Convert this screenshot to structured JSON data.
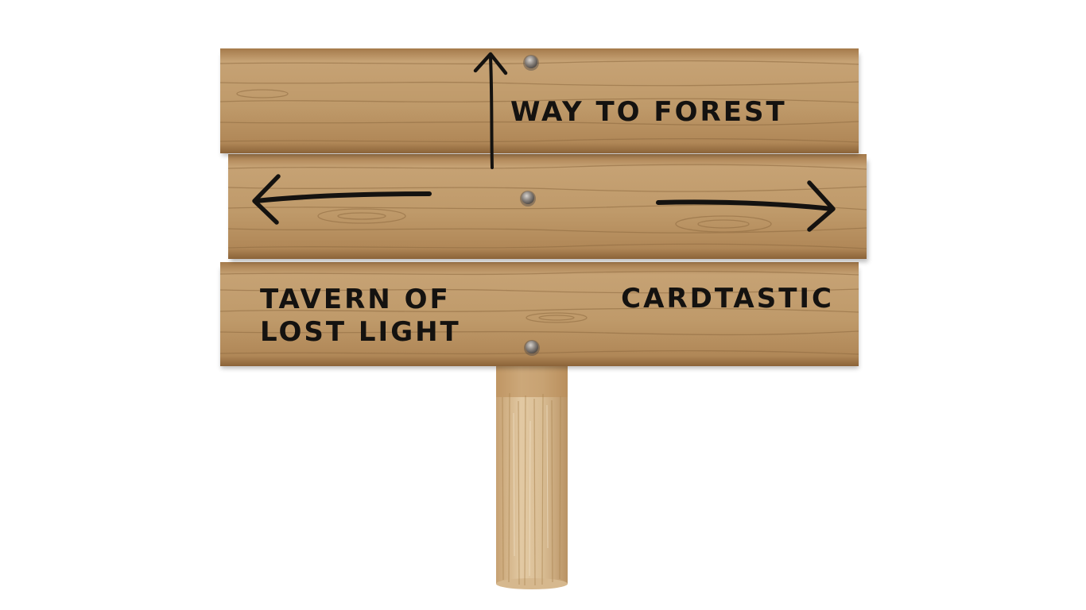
{
  "signpost": {
    "labels": {
      "up": "WAY TO FOREST",
      "left_line1": "TAVERN OF",
      "left_line2": "LOST LIGHT",
      "right": "CARDTASTIC"
    },
    "icons": {
      "up": "arrow-up-icon",
      "left": "arrow-left-icon",
      "right": "arrow-right-icon",
      "nail": "nail-icon"
    },
    "colors": {
      "background": "#ffffff",
      "wood_light": "#c9a679",
      "wood_mid": "#b48c5c",
      "wood_dark": "#8a6238",
      "grain": "#7f5a34",
      "ink": "#141210",
      "nail": "#8b8580"
    }
  }
}
